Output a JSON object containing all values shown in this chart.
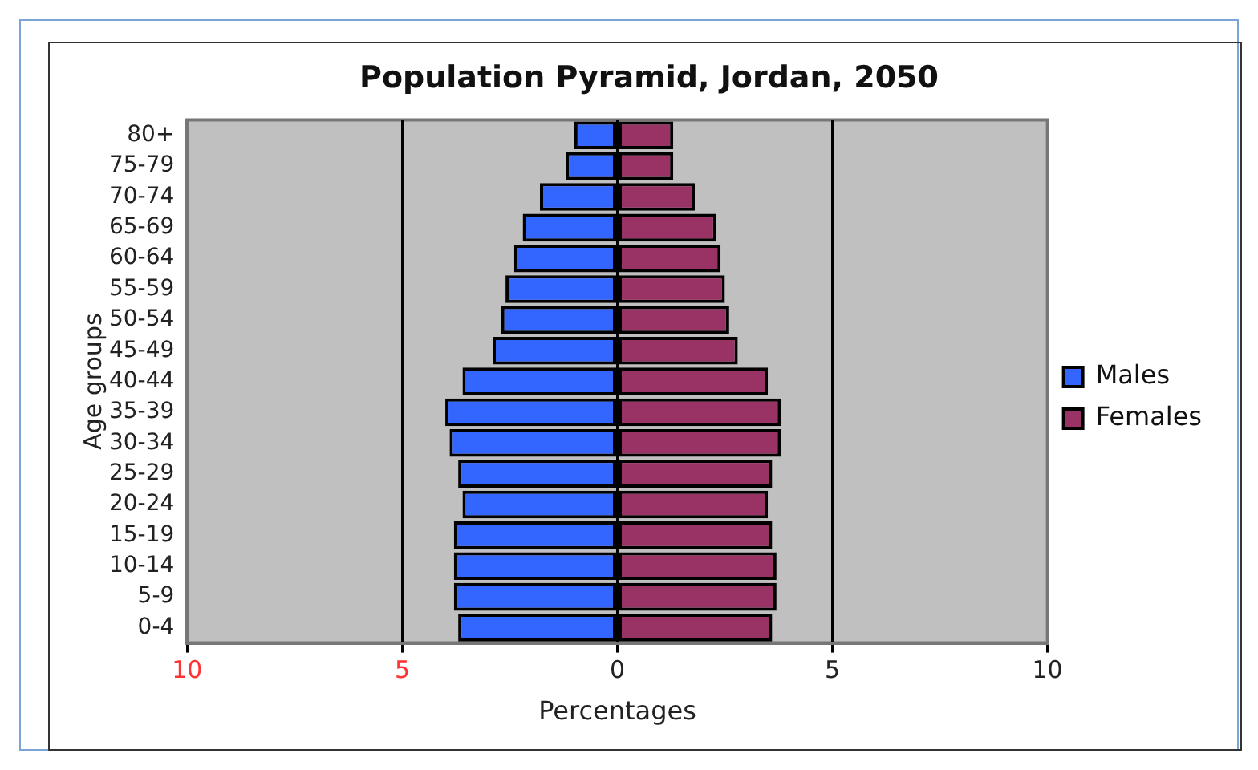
{
  "chart_data": {
    "type": "bar",
    "orientation": "horizontal",
    "stacked": true,
    "title": "Population Pyramid, Jordan, 2050",
    "xlabel": "Percentages",
    "ylabel": "Age groups",
    "categories": [
      "80+",
      "75-79",
      "70-74",
      "65-69",
      "60-64",
      "55-59",
      "50-54",
      "45-49",
      "40-44",
      "35-39",
      "30-34",
      "25-29",
      "20-24",
      "15-19",
      "10-14",
      "5-9",
      "0-4"
    ],
    "series": [
      {
        "name": "Males",
        "color": "#3366ff",
        "values": [
          -1.0,
          -1.2,
          -1.8,
          -2.2,
          -2.4,
          -2.6,
          -2.7,
          -2.9,
          -3.6,
          -4.0,
          -3.9,
          -3.7,
          -3.6,
          -3.8,
          -3.8,
          -3.8,
          -3.7
        ]
      },
      {
        "name": "Females",
        "color": "#993366",
        "values": [
          1.3,
          1.3,
          1.8,
          2.3,
          2.4,
          2.5,
          2.6,
          2.8,
          3.5,
          3.8,
          3.8,
          3.6,
          3.5,
          3.6,
          3.7,
          3.7,
          3.6
        ]
      }
    ],
    "xlim": [
      -10,
      10
    ],
    "xticks": [
      {
        "value": -10,
        "label": "10"
      },
      {
        "value": -5,
        "label": "5"
      },
      0,
      5,
      10
    ],
    "grid": "x",
    "legend": "right"
  }
}
